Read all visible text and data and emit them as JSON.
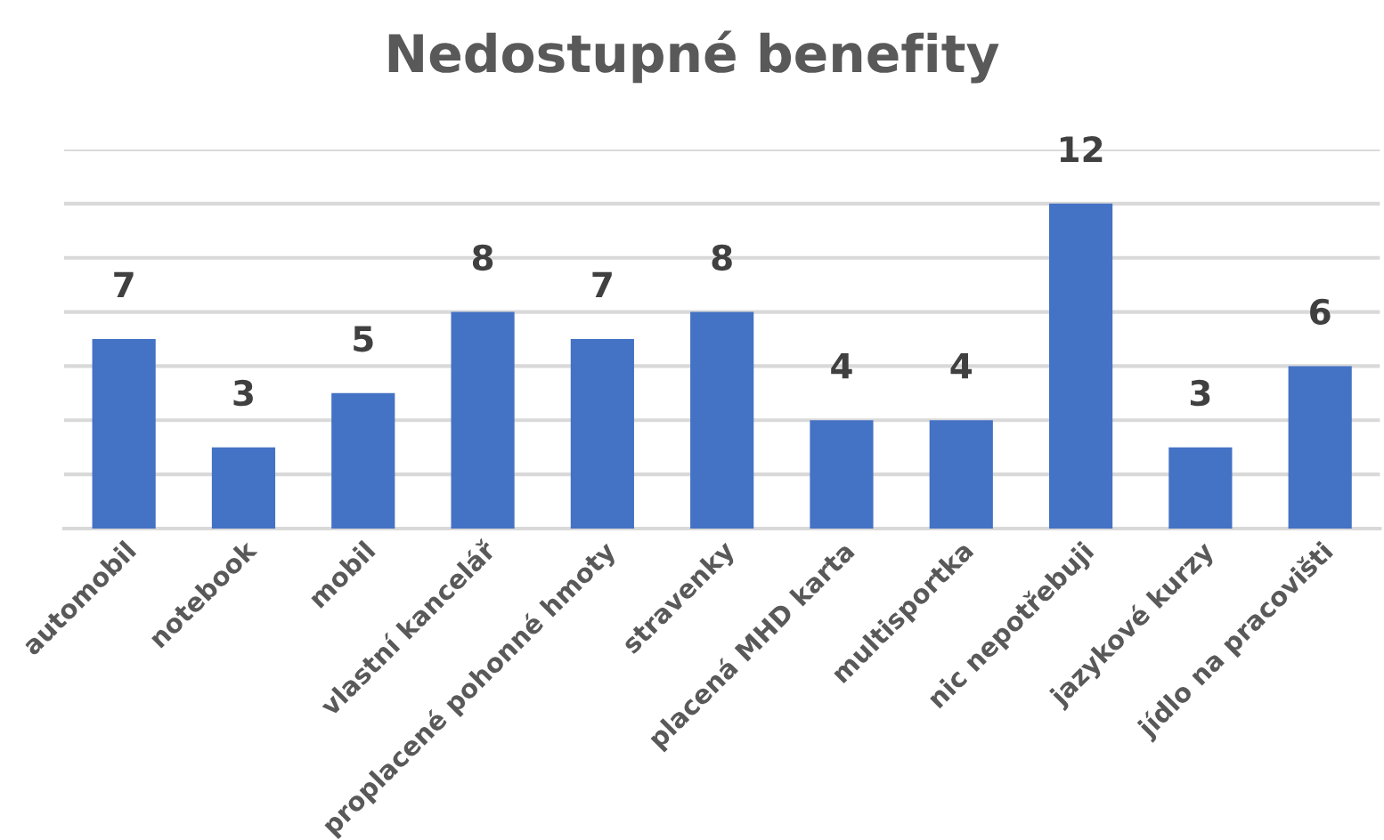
{
  "chart_data": {
    "type": "bar",
    "title": "Nedostupné benefity",
    "categories": [
      "automobil",
      "notebook",
      "mobil",
      "vlastní kancelář",
      "proplacené pohonné hmoty",
      "stravenky",
      "placená MHD karta",
      "multisportka",
      "nic nepotřebuji",
      "jazykové kurzy",
      "jídlo na pracovišti"
    ],
    "values": [
      7,
      3,
      5,
      8,
      7,
      8,
      4,
      4,
      12,
      3,
      6
    ],
    "color": "#4472c4",
    "data_labels": true,
    "ylim": [
      0,
      14
    ],
    "yticks": [
      {
        "value": 0,
        "label": null
      },
      {
        "value": 2,
        "label": null
      },
      {
        "value": 4,
        "label": null
      },
      {
        "value": 6,
        "label": null
      },
      {
        "value": 8,
        "label": null
      },
      {
        "value": 10,
        "label": null
      },
      {
        "value": 12,
        "label": null
      },
      {
        "value": 14,
        "label": null
      }
    ],
    "grid": "y",
    "tick_labels": "x"
  }
}
